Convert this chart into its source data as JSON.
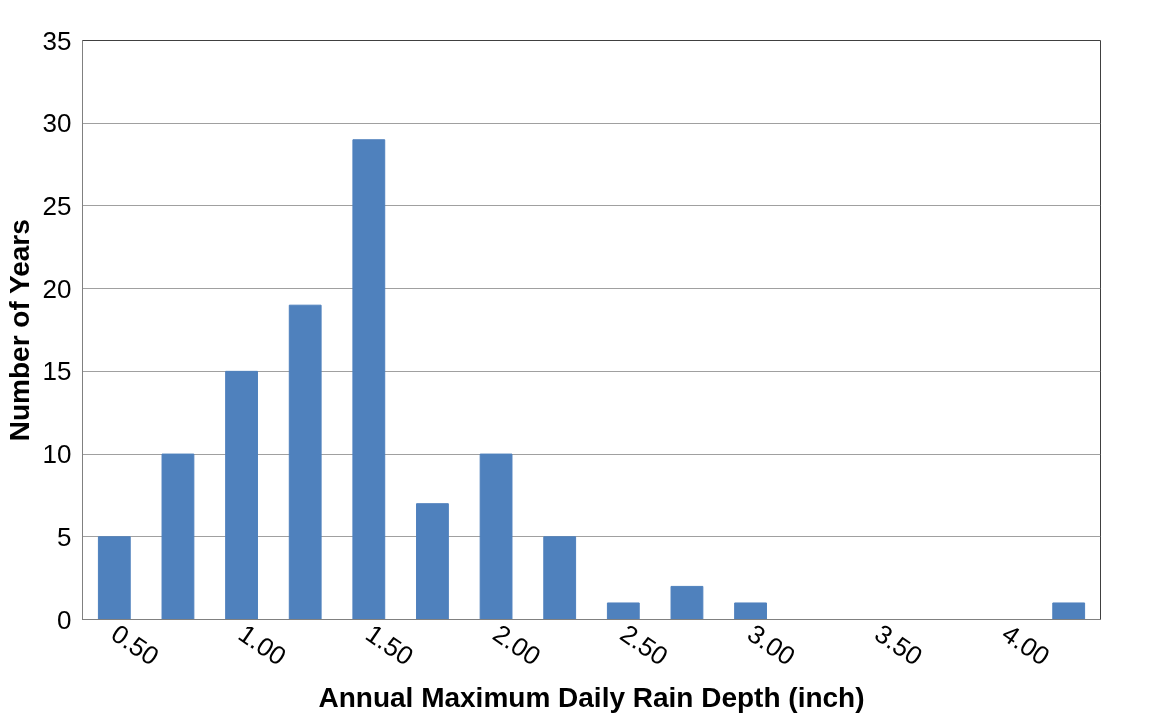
{
  "chart_data": {
    "type": "bar",
    "xlabel": "Annual Maximum Daily Rain Depth (inch)",
    "ylabel": "Number of Years",
    "categories": [
      "0.50",
      null,
      "1.00",
      null,
      "1.50",
      null,
      "2.00",
      null,
      "2.50",
      null,
      "3.00",
      null,
      "3.50",
      null,
      "4.00",
      null
    ],
    "values": [
      5,
      10,
      15,
      19,
      29,
      7,
      10,
      5,
      1,
      2,
      1,
      0,
      0,
      0,
      0,
      1
    ],
    "color": "#4f81bd",
    "ylim": [
      0,
      35
    ],
    "yticks": [
      0,
      5,
      10,
      15,
      20,
      25,
      30,
      35
    ],
    "grid": "y"
  }
}
